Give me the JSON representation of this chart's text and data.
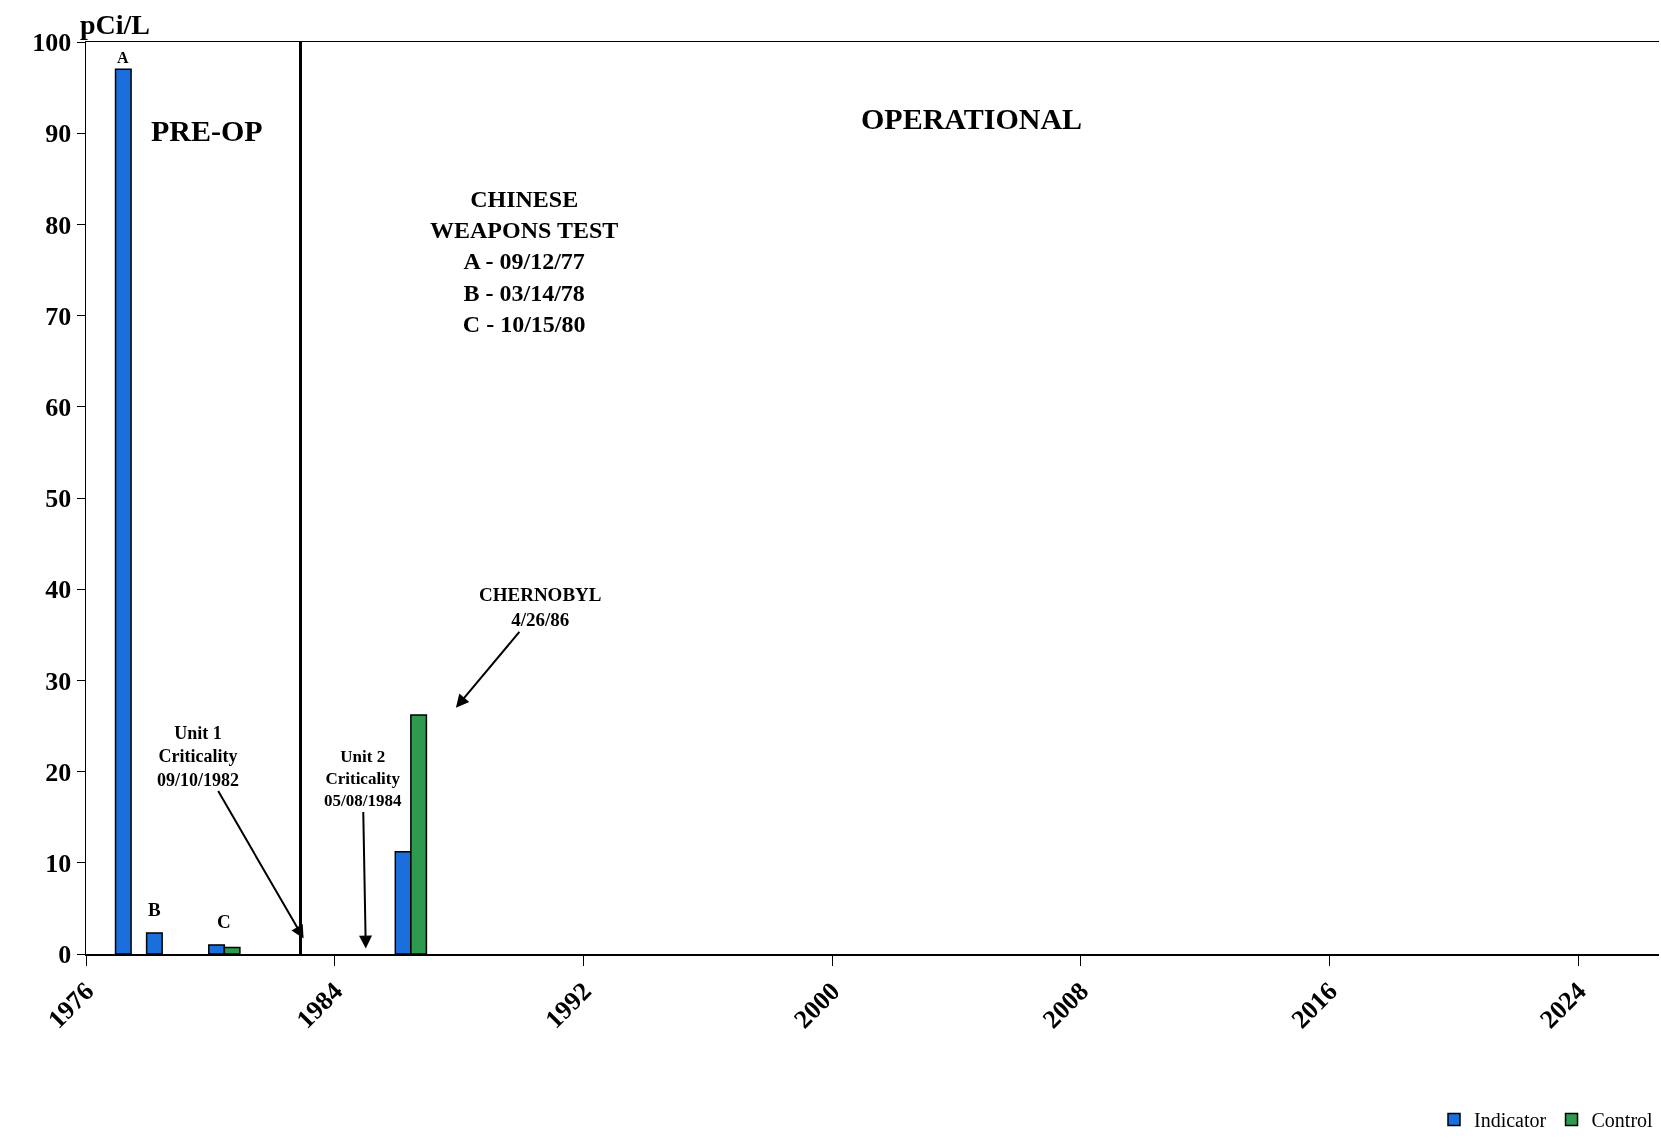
{
  "chart_data": {
    "type": "bar",
    "ylabel": "pCi/L",
    "series": [
      {
        "name": "Indicator",
        "color": "#1a6fdc",
        "x": [
          1977.2,
          1978.2,
          1980.2,
          1986.2
        ],
        "values": [
          97,
          2.3,
          1.0,
          11.2
        ]
      },
      {
        "name": "Control",
        "color": "#2e9a4f",
        "x": [
          1980.7,
          1986.7
        ],
        "values": [
          0.7,
          26.2
        ]
      }
    ],
    "xlim": [
      1976,
      2026.6
    ],
    "xticks": [
      1976,
      1984,
      1992,
      2000,
      2008,
      2016,
      2024
    ],
    "ylim": [
      0,
      100
    ],
    "yticks": [
      0,
      10,
      20,
      30,
      40,
      50,
      60,
      70,
      80,
      90,
      100
    ],
    "ref_lines": [
      {
        "axis": "x",
        "value": 1982.9,
        "color": "#000000",
        "line_style": "solid"
      }
    ],
    "annotations": [
      "PRE-OP",
      "OPERATIONAL",
      "CHINESE\nWEAPONS TEST\nA - 09/12/77\nB - 03/14/78\nC - 10/15/80",
      {
        "text": "A",
        "x": 1977.2,
        "y": 97
      },
      {
        "text": "B",
        "x": 1978.2,
        "y": 2.3
      },
      {
        "text": "C",
        "x": 1980.45,
        "y": 1.0
      },
      {
        "text": "Unit 1\nCriticality\n09/10/1982",
        "x": 1983.0,
        "y": 1.7
      },
      "Unit 2\nCriticality\n05/08/1984",
      "CHERNOBYL\n4/26/86"
    ],
    "grid": false,
    "legend": "bottom right"
  }
}
